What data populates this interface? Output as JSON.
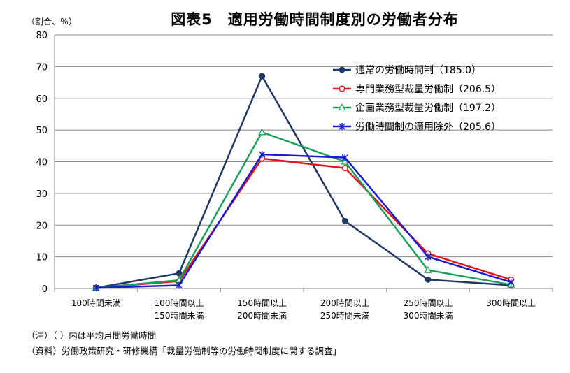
{
  "chart_data": {
    "type": "line",
    "title": "図表5　適用労働時間制度別の労働者分布",
    "unit_label": "（割合、％）",
    "categories": [
      [
        "100時間未満"
      ],
      [
        "100時間以上",
        "150時間未満"
      ],
      [
        "150時間以上",
        "200時間未満"
      ],
      [
        "200時間以上",
        "250時間未満"
      ],
      [
        "250時間以上",
        "300時間未満"
      ],
      [
        "300時間以上"
      ]
    ],
    "ylim": [
      0,
      80
    ],
    "yticks": [
      0,
      10,
      20,
      30,
      40,
      50,
      60,
      70,
      80
    ],
    "grid": true,
    "legend_position": "top-right",
    "series": [
      {
        "name": "通常の労働時間制（185.0）",
        "color": "#1f3864",
        "marker": "filled-circle",
        "values": [
          0.2,
          4.8,
          67.0,
          21.3,
          2.8,
          1.0
        ]
      },
      {
        "name": "専門業務型裁量労働制（206.5）",
        "color": "#e3161b",
        "marker": "open-circle",
        "values": [
          0.2,
          2.3,
          41.0,
          38.0,
          11.0,
          2.8
        ]
      },
      {
        "name": "企画業務型裁量労働制（197.2）",
        "color": "#1aa05a",
        "marker": "open-triangle",
        "values": [
          0.2,
          2.6,
          49.3,
          40.0,
          5.8,
          1.2
        ]
      },
      {
        "name": "労働時間制の適用除外（205.6）",
        "color": "#1c1ccf",
        "marker": "x-star",
        "values": [
          0.2,
          1.0,
          42.3,
          41.3,
          10.0,
          2.0
        ]
      }
    ]
  },
  "notes": {
    "note1": "（注）（ ）内は平均月間労働時間",
    "source": "（資料）労働政策研究・研修機構「裁量労働制等の労働時間制度に関する調査」"
  }
}
